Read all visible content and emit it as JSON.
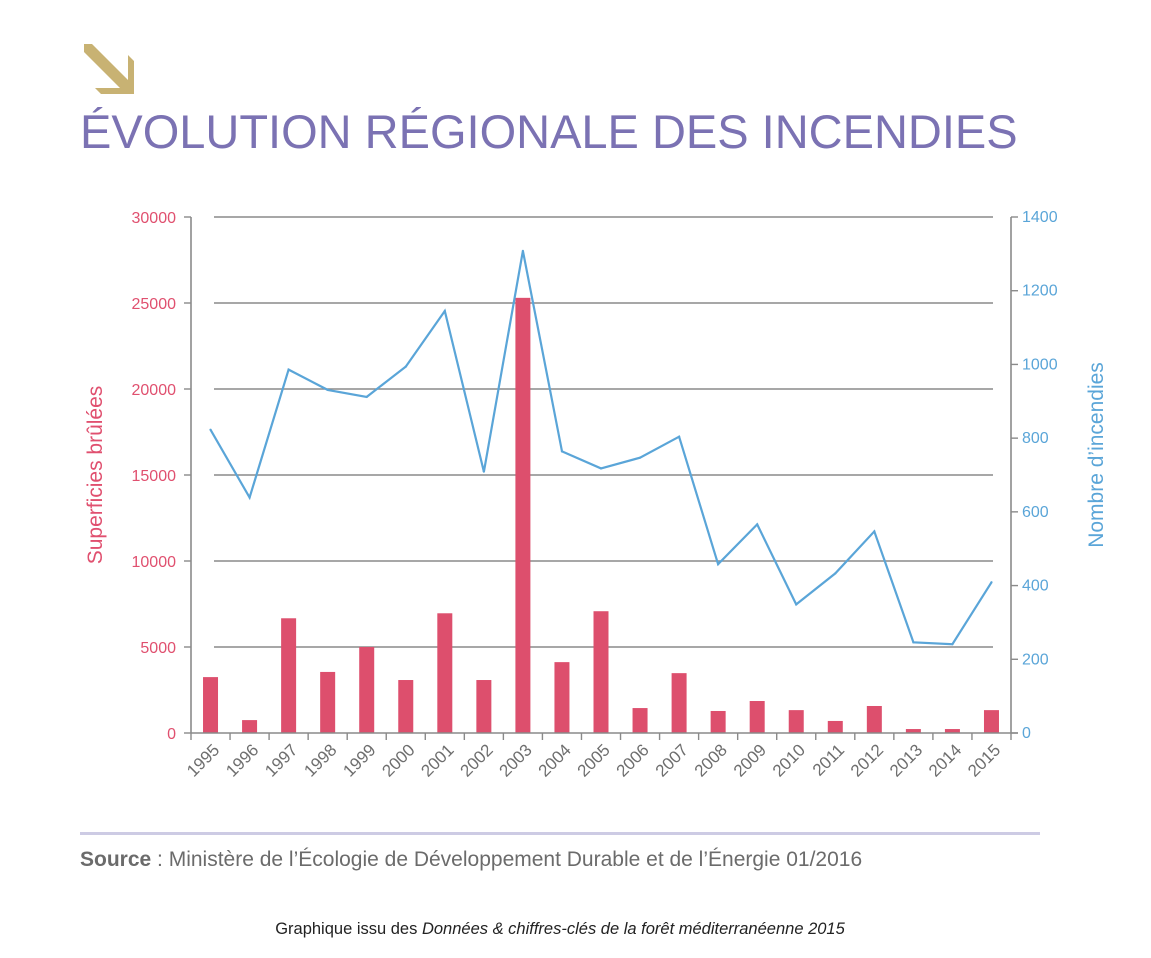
{
  "header": {
    "icon": "arrow-down-right-icon",
    "title": "ÉVOLUTION RÉGIONALE DES INCENDIES"
  },
  "colors": {
    "title": "#7b72b3",
    "arrow": "#c8b273",
    "bars": "#dd4f6d",
    "line": "#5aa5d8",
    "left_axis": "#e0506f",
    "right_axis": "#5aa5d8",
    "grid": "#8a8a8a"
  },
  "chart_data": {
    "type": "bar+line",
    "title": "ÉVOLUTION RÉGIONALE DES INCENDIES",
    "categories": [
      "1995",
      "1996",
      "1997",
      "1998",
      "1999",
      "2000",
      "2001",
      "2002",
      "2003",
      "2004",
      "2005",
      "2006",
      "2007",
      "2008",
      "2009",
      "2010",
      "2011",
      "2012",
      "2013",
      "2014",
      "2015"
    ],
    "series": [
      {
        "name": "Superficies brûlées",
        "type": "bar",
        "axis": "left",
        "values": [
          3250,
          750,
          6670,
          3550,
          5000,
          3080,
          6960,
          3080,
          25300,
          4120,
          7080,
          1450,
          3480,
          1280,
          1860,
          1330,
          700,
          1570,
          230,
          230,
          1330
        ]
      },
      {
        "name": "Nombre d’incendies",
        "type": "line",
        "axis": "right",
        "values": [
          823,
          639,
          986,
          931,
          912,
          994,
          1145,
          709,
          1308,
          764,
          718,
          747,
          804,
          458,
          566,
          349,
          433,
          547,
          246,
          241,
          409
        ]
      }
    ],
    "ylabel": "Superficies brûlées",
    "y2label": "Nombre d’incendies",
    "ylim": [
      0,
      30000
    ],
    "y2lim": [
      0,
      1400
    ],
    "yticks": [
      "0",
      "5000",
      "10000",
      "15000",
      "20000",
      "25000",
      "30000"
    ],
    "y2ticks": [
      "0",
      "200",
      "400",
      "600",
      "800",
      "1000",
      "1200",
      "1400"
    ],
    "grid": true,
    "legend": "none"
  },
  "footer": {
    "source_label": "Source",
    "source_text": " : Ministère de l’Écologie de Développement Durable et de l’Énergie 01/2016",
    "caption_prefix": "Graphique issu des ",
    "caption_italic": "Données & chiffres-clés de la forêt méditerranéenne 2015"
  }
}
